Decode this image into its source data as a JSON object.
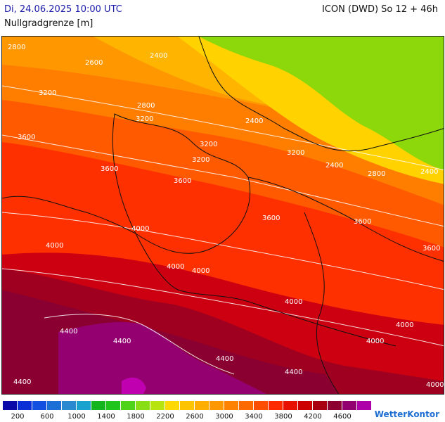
{
  "header": {
    "datetime": "Di, 24.06.2025 10:00 UTC",
    "parameter": "Nullgradgrenze [m]",
    "model_run": "ICON (DWD) So 12 + 46h"
  },
  "map": {
    "contour_labels": [
      "2800",
      "2600",
      "2400",
      "3200",
      "2800",
      "3200",
      "2400",
      "3600",
      "3200",
      "3600",
      "3200",
      "3600",
      "2400",
      "2800",
      "2400",
      "3200",
      "3600",
      "4000",
      "4000",
      "4000",
      "4000",
      "3600",
      "3600",
      "4000",
      "4000",
      "4400",
      "4400",
      "4400",
      "4400",
      "4400",
      "4000",
      "4000"
    ]
  },
  "legend": {
    "colors": [
      "#0a0aa8",
      "#0a2fd6",
      "#1450e0",
      "#1d6fd8",
      "#2a8ad0",
      "#1aa2cf",
      "#13b51e",
      "#1fc51a",
      "#4fd31a",
      "#88dd15",
      "#b7e40f",
      "#ffd800",
      "#ffc400",
      "#ffae00",
      "#ff9800",
      "#ff8200",
      "#ff6a00",
      "#ff4d00",
      "#ff2a00",
      "#e81000",
      "#cc0000",
      "#a80010",
      "#8d0030",
      "#930070",
      "#ad00a8"
    ],
    "tick_labels": [
      "200",
      "600",
      "1000",
      "1400",
      "1800",
      "2200",
      "2600",
      "3000",
      "3400",
      "3800",
      "4200",
      "4600"
    ]
  },
  "brand": {
    "name": "WetterKontor"
  }
}
